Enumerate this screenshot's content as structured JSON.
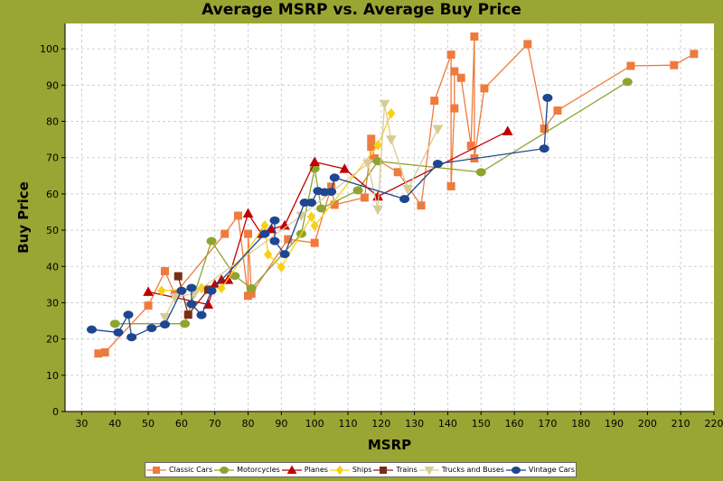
{
  "chart_data": {
    "type": "scatter",
    "title": "Average MSRP vs. Average Buy Price",
    "xlabel": "MSRP",
    "ylabel": "Buy Price",
    "xlim": [
      25,
      220
    ],
    "ylim": [
      0,
      107
    ],
    "x_ticks": [
      30,
      40,
      50,
      60,
      70,
      80,
      90,
      100,
      110,
      120,
      130,
      140,
      150,
      160,
      170,
      180,
      190,
      200,
      210,
      220
    ],
    "y_ticks": [
      0,
      10,
      20,
      30,
      40,
      50,
      60,
      70,
      80,
      90,
      100
    ],
    "grid": true,
    "legend_position": "bottom",
    "series": [
      {
        "name": "Classic Cars",
        "color": "#ee7b3d",
        "marker": "square",
        "points": [
          [
            35,
            16
          ],
          [
            37,
            16.3
          ],
          [
            50,
            29.2
          ],
          [
            55,
            38.7
          ],
          [
            58,
            32.4
          ],
          [
            73,
            49
          ],
          [
            77,
            54
          ],
          [
            80,
            31.9
          ],
          [
            80,
            49
          ],
          [
            81,
            32.5
          ],
          [
            92,
            47.5
          ],
          [
            100,
            46.5
          ],
          [
            105,
            62
          ],
          [
            106,
            57
          ],
          [
            115,
            59
          ],
          [
            117,
            73
          ],
          [
            117,
            75.2
          ],
          [
            118,
            69.8
          ],
          [
            125,
            66
          ],
          [
            132,
            56.8
          ],
          [
            136,
            85.7
          ],
          [
            141,
            98.4
          ],
          [
            141,
            62.1
          ],
          [
            142,
            83.6
          ],
          [
            142,
            93.8
          ],
          [
            144,
            92
          ],
          [
            147,
            73.3
          ],
          [
            148,
            103.4
          ],
          [
            148,
            69.8
          ],
          [
            151,
            89.1
          ],
          [
            164,
            101.3
          ],
          [
            169,
            78
          ],
          [
            173,
            83
          ],
          [
            195,
            95.3
          ],
          [
            208,
            95.5
          ],
          [
            214,
            98.6
          ]
        ]
      },
      {
        "name": "Motorcycles",
        "color": "#8ea431",
        "marker": "circle",
        "points": [
          [
            40,
            24.2
          ],
          [
            61,
            24.2
          ],
          [
            69,
            47
          ],
          [
            76,
            37.4
          ],
          [
            81,
            34
          ],
          [
            96,
            49
          ],
          [
            100,
            67
          ],
          [
            102,
            56
          ],
          [
            113,
            61
          ],
          [
            119,
            69
          ],
          [
            150,
            66
          ],
          [
            194,
            90.9
          ]
        ]
      },
      {
        "name": "Planes",
        "color": "#c00000",
        "marker": "triangle",
        "points": [
          [
            50,
            33
          ],
          [
            68,
            29.5
          ],
          [
            70,
            35
          ],
          [
            72,
            36.3
          ],
          [
            74,
            36.3
          ],
          [
            80,
            54.6
          ],
          [
            84,
            49
          ],
          [
            87,
            50.3
          ],
          [
            91,
            51.3
          ],
          [
            100,
            68.8
          ],
          [
            109,
            66.9
          ],
          [
            119,
            59.3
          ],
          [
            158,
            77.3
          ]
        ]
      },
      {
        "name": "Ships",
        "color": "#f7d117",
        "marker": "diamond",
        "points": [
          [
            54,
            33.3
          ],
          [
            66,
            34
          ],
          [
            72,
            34
          ],
          [
            85,
            51.3
          ],
          [
            86,
            43.3
          ],
          [
            90,
            39.8
          ],
          [
            99,
            53.7
          ],
          [
            100,
            51.2
          ],
          [
            119,
            73.4
          ],
          [
            123,
            82.2
          ]
        ]
      },
      {
        "name": "Trains",
        "color": "#7b2d13",
        "marker": "square",
        "points": [
          [
            59,
            37.3
          ],
          [
            62,
            26.7
          ],
          [
            68,
            33.6
          ]
        ]
      },
      {
        "name": "Trucks and Buses",
        "color": "#d8cc95",
        "marker": "triangle-down",
        "points": [
          [
            55,
            26
          ],
          [
            58,
            31.5
          ],
          [
            64,
            32.6
          ],
          [
            96,
            54
          ],
          [
            116,
            68.4
          ],
          [
            119,
            55.7
          ],
          [
            121,
            84.8
          ],
          [
            123,
            75
          ],
          [
            128,
            61.3
          ],
          [
            137,
            77.9
          ]
        ]
      },
      {
        "name": "Vintage Cars",
        "color": "#1f4690",
        "marker": "circle",
        "points": [
          [
            33,
            22.6
          ],
          [
            41,
            21.8
          ],
          [
            44,
            26.7
          ],
          [
            45,
            20.5
          ],
          [
            51,
            23
          ],
          [
            55,
            24
          ],
          [
            60,
            33.3
          ],
          [
            63,
            34.1
          ],
          [
            63,
            29.6
          ],
          [
            66,
            26.6
          ],
          [
            69,
            33.3
          ],
          [
            85,
            49
          ],
          [
            88,
            52.7
          ],
          [
            88,
            47
          ],
          [
            91,
            43.4
          ],
          [
            97,
            57.6
          ],
          [
            99,
            57.6
          ],
          [
            101,
            60.8
          ],
          [
            103,
            60.5
          ],
          [
            105,
            60.6
          ],
          [
            106,
            64.5
          ],
          [
            127,
            58.6
          ],
          [
            137,
            68.3
          ],
          [
            169,
            72.5
          ],
          [
            170,
            86.5
          ]
        ]
      }
    ]
  }
}
